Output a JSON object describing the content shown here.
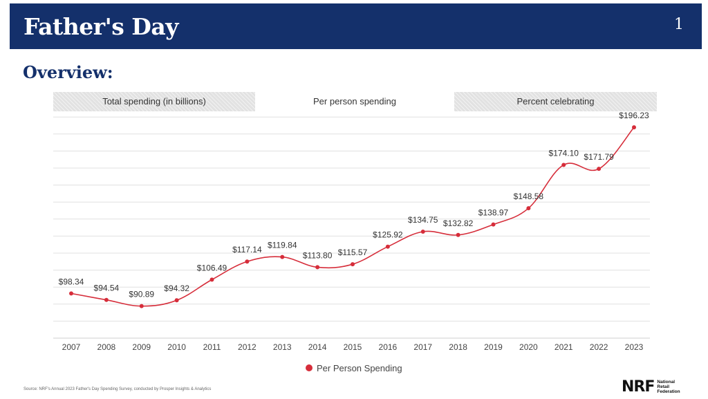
{
  "header": {
    "title": "Father's Day",
    "page_number": "1"
  },
  "section_title": "Overview:",
  "tabs": [
    {
      "label": "Total spending (in billions)",
      "active": false
    },
    {
      "label": "Per person spending",
      "active": true
    },
    {
      "label": "Percent celebrating",
      "active": false
    }
  ],
  "colors": {
    "header_bg": "#14306b",
    "series": "#d62d3a",
    "grid": "#e0e0e0"
  },
  "chart_data": {
    "type": "line",
    "title": "",
    "xlabel": "",
    "ylabel": "",
    "ylim": [
      72,
      202
    ],
    "grid": true,
    "legend_position": "bottom-center",
    "categories": [
      "2007",
      "2008",
      "2009",
      "2010",
      "2011",
      "2012",
      "2013",
      "2014",
      "2015",
      "2016",
      "2017",
      "2018",
      "2019",
      "2020",
      "2021",
      "2022",
      "2023"
    ],
    "series": [
      {
        "name": "Per Person Spending",
        "values": [
          98.34,
          94.54,
          90.89,
          94.32,
          106.49,
          117.14,
          119.84,
          113.8,
          115.57,
          125.92,
          134.75,
          132.82,
          138.97,
          148.58,
          174.1,
          171.79,
          196.23
        ],
        "labels": [
          "$98.34",
          "$94.54",
          "$90.89",
          "$94.32",
          "$106.49",
          "$117.14",
          "$119.84",
          "$113.80",
          "$115.57",
          "$125.92",
          "$134.75",
          "$132.82",
          "$138.97",
          "$148.58",
          "$174.10",
          "$171.79",
          "$196.23"
        ]
      }
    ]
  },
  "legend": {
    "label": "Per Person Spending"
  },
  "footer": {
    "source": "Source: NRF's Annual 2023 Father's Day Spending Survey, conducted by Prosper Insights & Analytics",
    "logo_mark": "NRF",
    "logo_text": [
      "National",
      "Retail",
      "Federation"
    ]
  }
}
